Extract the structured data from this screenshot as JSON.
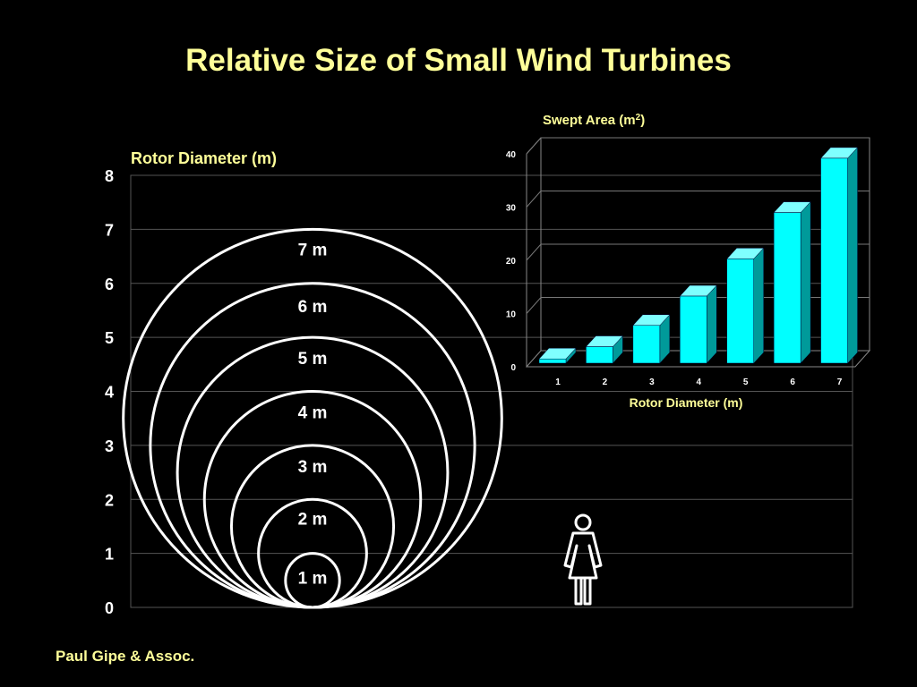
{
  "title": "Relative Size of Small Wind Turbines",
  "credit": "Paul Gipe & Assoc.",
  "colors": {
    "title": "#ffff99",
    "bar": "#00ffff",
    "bar_side": "#009a9a",
    "bar_top": "#7fffff"
  },
  "icons": {
    "person": "woman-figure-icon"
  },
  "chart_data": [
    {
      "type": "other",
      "description_kind": "nested circles",
      "ylabel": "Rotor Diameter (m)",
      "ylim": [
        0,
        8
      ],
      "yticks": [
        "0",
        "1",
        "2",
        "3",
        "4",
        "5",
        "6",
        "7",
        "8"
      ],
      "grid": true,
      "diameters": [
        1,
        2,
        3,
        4,
        5,
        6,
        7
      ],
      "circle_labels": [
        "1 m",
        "2 m",
        "3 m",
        "4 m",
        "5 m",
        "6 m",
        "7 m"
      ]
    },
    {
      "type": "bar",
      "title_main": "Swept Area (m",
      "title_sup": "2",
      "title_end": ")",
      "xlabel": "Rotor Diameter (m)",
      "categories": [
        "1",
        "2",
        "3",
        "4",
        "5",
        "6",
        "7"
      ],
      "values": [
        0.8,
        3.1,
        7.1,
        12.6,
        19.6,
        28.3,
        38.5
      ],
      "ylim": [
        0,
        40
      ],
      "yticks": [
        "0",
        "10",
        "20",
        "30",
        "40"
      ]
    }
  ]
}
